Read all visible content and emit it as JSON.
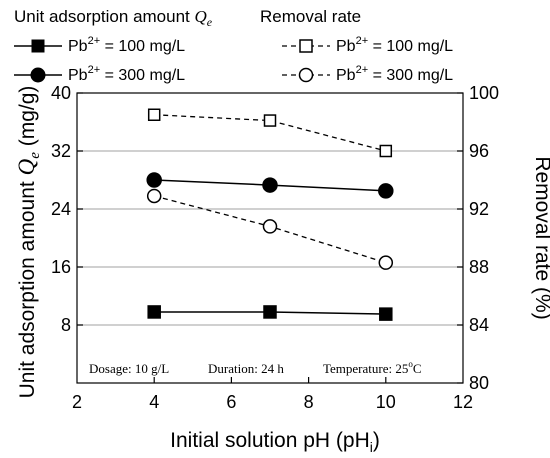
{
  "chart_data": {
    "type": "line",
    "legend": {
      "left_title": "Unit adsorption amount",
      "left_title_symbol": "Q",
      "left_title_sub": "e",
      "right_title": "Removal rate",
      "species": "Pb",
      "species_charge": "2+",
      "conc_100": "= 100 mg/L",
      "conc_300": "= 300 mg/L",
      "placement": "top"
    },
    "x": [
      4,
      7,
      10
    ],
    "xlim": [
      2,
      12
    ],
    "xticks": [
      2,
      4,
      6,
      8,
      10,
      12
    ],
    "xlabel_main": "Initial solution  pH (pH",
    "xlabel_sub": "i",
    "xlabel_close": ")",
    "left_axis": {
      "ylim": [
        0,
        40
      ],
      "ticks": [
        8,
        16,
        24,
        32,
        40
      ],
      "label": "Unit adsorption amount",
      "label_symbol": "Q",
      "label_sub": "e",
      "label_unit": "(mg/g)"
    },
    "right_axis": {
      "ylim": [
        80,
        100
      ],
      "ticks": [
        80,
        84,
        88,
        92,
        96,
        100
      ],
      "label": "Removal rate (%)"
    },
    "grid": true,
    "series": [
      {
        "id": "q100",
        "axis": "left",
        "marker": "square",
        "filled": true,
        "dashed": false,
        "values": [
          9.8,
          9.8,
          9.5
        ]
      },
      {
        "id": "q300",
        "axis": "left",
        "marker": "circle",
        "filled": true,
        "dashed": false,
        "values": [
          28.0,
          27.3,
          26.5
        ]
      },
      {
        "id": "r100",
        "axis": "right",
        "marker": "square",
        "filled": false,
        "dashed": true,
        "values": [
          98.5,
          98.1,
          96.0
        ]
      },
      {
        "id": "r300",
        "axis": "right",
        "marker": "circle",
        "filled": false,
        "dashed": true,
        "values": [
          92.9,
          90.8,
          88.3
        ]
      }
    ],
    "conditions": {
      "dosage": "Dosage: 10 g/L",
      "duration": "Duration: 24 h",
      "temperature": "Temperature: 25",
      "temperature_sup": "o",
      "temperature_unit": "C"
    },
    "colors": {
      "line": "#000000",
      "grid": "#b4b4b4",
      "background": "#ffffff"
    }
  }
}
